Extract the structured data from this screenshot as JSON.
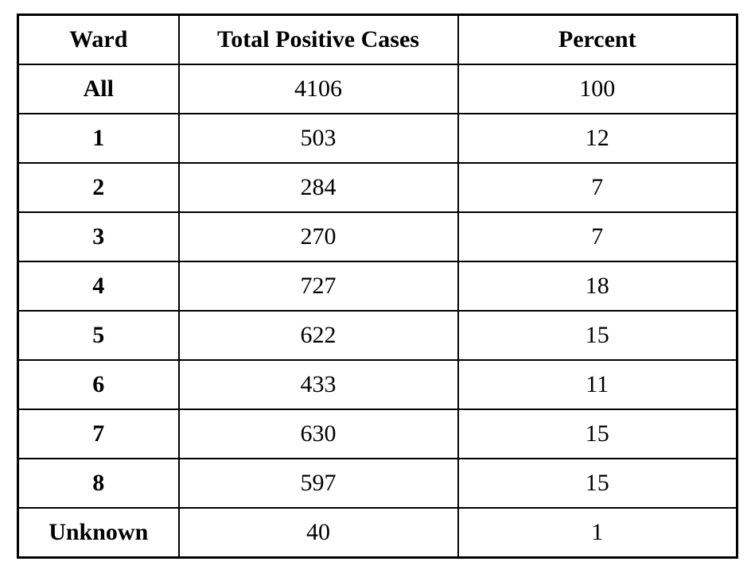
{
  "table": {
    "headers": [
      "Ward",
      "Total Positive Cases",
      "Percent"
    ],
    "rows": [
      [
        "All",
        "4106",
        "100"
      ],
      [
        "1",
        "503",
        "12"
      ],
      [
        "2",
        "284",
        "7"
      ],
      [
        "3",
        "270",
        "7"
      ],
      [
        "4",
        "727",
        "18"
      ],
      [
        "5",
        "622",
        "15"
      ],
      [
        "6",
        "433",
        "11"
      ],
      [
        "7",
        "630",
        "15"
      ],
      [
        "8",
        "597",
        "15"
      ],
      [
        "Unknown",
        "40",
        "1"
      ]
    ]
  },
  "colors": {
    "border": "#000000",
    "text": "#000000",
    "background": "#ffffff"
  },
  "chart_data": {
    "type": "table",
    "title": "",
    "columns": [
      "Ward",
      "Total Positive Cases",
      "Percent"
    ],
    "categories": [
      "All",
      "1",
      "2",
      "3",
      "4",
      "5",
      "6",
      "7",
      "8",
      "Unknown"
    ],
    "series": [
      {
        "name": "Total Positive Cases",
        "values": [
          4106,
          503,
          284,
          270,
          727,
          622,
          433,
          630,
          597,
          40
        ]
      },
      {
        "name": "Percent",
        "values": [
          100,
          12,
          7,
          7,
          18,
          15,
          11,
          15,
          15,
          1
        ]
      }
    ]
  }
}
